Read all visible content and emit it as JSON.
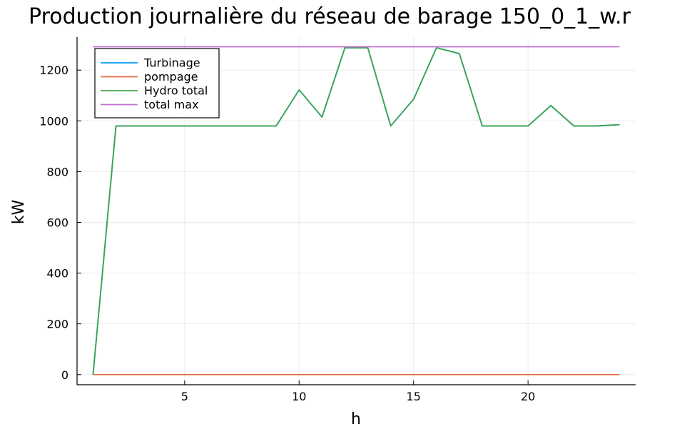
{
  "chart_data": {
    "type": "line",
    "title": "Production journalière du réseau de barage 150_0_1_w.r",
    "xlabel": "h",
    "ylabel": "kW",
    "xlim": [
      0.3,
      24.7
    ],
    "ylim": [
      -40,
      1330
    ],
    "xticks": [
      5,
      10,
      15,
      20
    ],
    "yticks": [
      0,
      200,
      400,
      600,
      800,
      1000,
      1200
    ],
    "grid": true,
    "legend_position": "top-left",
    "x": [
      1,
      2,
      3,
      4,
      5,
      6,
      7,
      8,
      9,
      10,
      11,
      12,
      13,
      14,
      15,
      16,
      17,
      18,
      19,
      20,
      21,
      22,
      23,
      24
    ],
    "series": [
      {
        "name": "Turbinage",
        "color": "#009AFA",
        "values": [
          0,
          980,
          980,
          980,
          980,
          980,
          980,
          980,
          980,
          1122,
          1015,
          1288,
          1288,
          980,
          1085,
          1288,
          1265,
          980,
          980,
          980,
          1060,
          980,
          980,
          985
        ]
      },
      {
        "name": "pompage",
        "color": "#E36F47",
        "values": [
          0,
          0,
          0,
          0,
          0,
          0,
          0,
          0,
          0,
          0,
          0,
          0,
          0,
          0,
          0,
          0,
          0,
          0,
          0,
          0,
          0,
          0,
          0,
          0
        ]
      },
      {
        "name": "Hydro total",
        "color": "#3EA44E",
        "values": [
          0,
          980,
          980,
          980,
          980,
          980,
          980,
          980,
          980,
          1122,
          1015,
          1288,
          1288,
          980,
          1085,
          1288,
          1265,
          980,
          980,
          980,
          1060,
          980,
          980,
          985
        ]
      },
      {
        "name": "total max",
        "color": "#C271D2",
        "values": [
          1292,
          1292,
          1292,
          1292,
          1292,
          1292,
          1292,
          1292,
          1292,
          1292,
          1292,
          1292,
          1292,
          1292,
          1292,
          1292,
          1292,
          1292,
          1292,
          1292,
          1292,
          1292,
          1292,
          1292
        ]
      }
    ]
  }
}
